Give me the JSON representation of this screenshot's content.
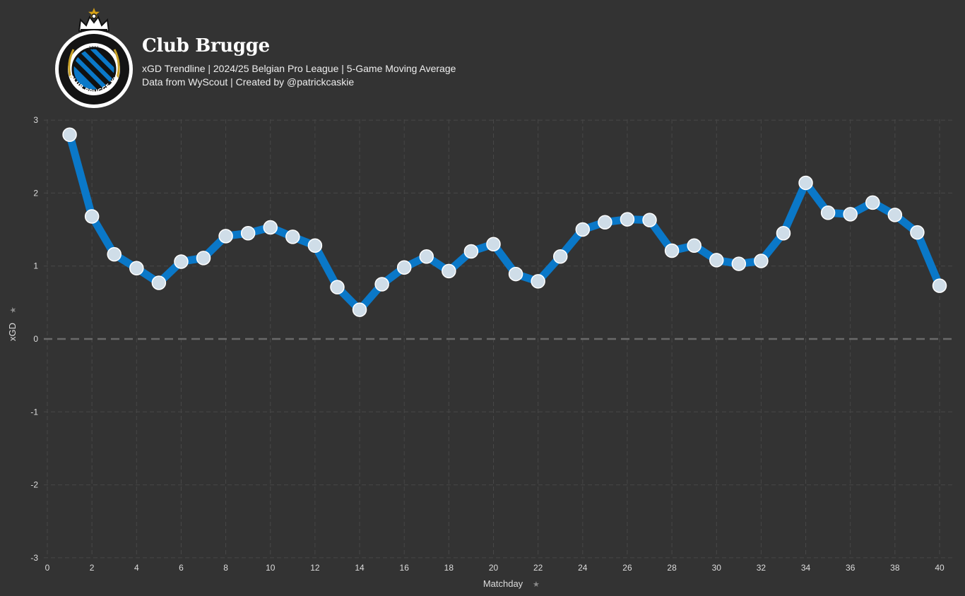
{
  "header": {
    "title": "Club Brugge",
    "subtitle": "xGD Trendline | 2024/25 Belgian Pro League | 5-Game Moving Average",
    "caption": "Data from WyScout | Created by @patrickcaskie",
    "logo_text": "CLUB BRUGGE KV",
    "logo_year": "1891"
  },
  "colors": {
    "background": "#333333",
    "line": "#0a78c8",
    "marker_fill": "#cfdde8",
    "marker_stroke": "#ffffff",
    "grid": "#474747",
    "zero_line": "#6a6a6a",
    "brand_blue": "#0a78c8",
    "gold": "#c9a227"
  },
  "chart_data": {
    "type": "line",
    "xlabel": "Matchday",
    "ylabel": "xGD",
    "xlim": [
      0,
      40
    ],
    "ylim": [
      -3,
      3
    ],
    "xticks": [
      0,
      2,
      4,
      6,
      8,
      10,
      12,
      14,
      16,
      18,
      20,
      22,
      24,
      26,
      28,
      30,
      32,
      34,
      36,
      38,
      40
    ],
    "yticks": [
      3,
      2,
      1,
      0,
      -1,
      -2,
      -3
    ],
    "grid": true,
    "zero_reference_line": true,
    "x": [
      1,
      2,
      3,
      4,
      5,
      6,
      7,
      8,
      9,
      10,
      11,
      12,
      13,
      14,
      15,
      16,
      17,
      18,
      19,
      20,
      21,
      22,
      23,
      24,
      25,
      26,
      27,
      28,
      29,
      30,
      31,
      32,
      33,
      34,
      35,
      36,
      37,
      38,
      39,
      40
    ],
    "y": [
      2.8,
      1.68,
      1.16,
      0.97,
      0.77,
      1.06,
      1.11,
      1.41,
      1.45,
      1.53,
      1.4,
      1.28,
      0.71,
      0.4,
      0.75,
      0.98,
      1.13,
      0.93,
      1.2,
      1.3,
      0.89,
      0.79,
      1.13,
      1.5,
      1.6,
      1.64,
      1.63,
      1.21,
      1.28,
      1.08,
      1.03,
      1.07,
      1.45,
      2.14,
      1.73,
      1.71,
      1.87,
      1.7,
      1.46,
      0.73
    ]
  }
}
